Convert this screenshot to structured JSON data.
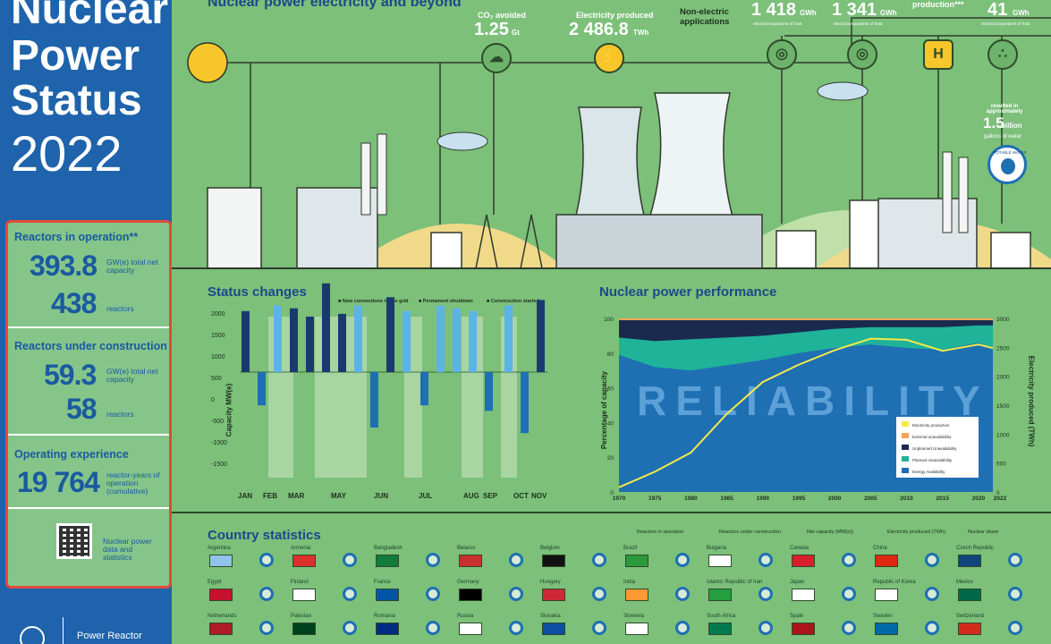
{
  "title": {
    "line1": "Nuclear",
    "line2": "Power",
    "line3": "Status",
    "year": "2022"
  },
  "stats": {
    "operation": {
      "heading": "Reactors in operation**",
      "capacity": "393.8",
      "capacity_unit": "GW(e) total net capacity",
      "reactors": "438",
      "reactors_unit": "reactors"
    },
    "construction": {
      "heading": "Reactors under construction",
      "capacity": "59.3",
      "capacity_unit": "GW(e) total net capacity",
      "reactors": "58",
      "reactors_unit": "reactors"
    },
    "experience": {
      "heading": "Operating experience",
      "value": "19 764",
      "unit": "reactor-years of operation (cumulative)"
    },
    "qr_label": "Nuclear power data and statistics"
  },
  "footer": {
    "org": "Power Reactor"
  },
  "hero": {
    "heading": "Nuclear power electricity and beyond",
    "co2_label": "CO₂ avoided",
    "co2_value": "1.25",
    "co2_unit": "Gt",
    "elec_label": "Electricity produced",
    "elec_value": "2 486.8",
    "elec_unit": "TWh",
    "nonelec": "Non-electric applications",
    "heat1_value": "1 418",
    "heat1_unit": "GWh",
    "heat1_note": "electrical equivalent of heat",
    "heat2_value": "1 341",
    "heat2_unit": "GWh",
    "heat2_note": "electrical equivalent of heat",
    "h2_label": "production***",
    "water_value": "41",
    "water_unit": "GWh",
    "water_note": "electrical equivalent of heat",
    "water_result": "resulted in approximately",
    "water_big": "1.5",
    "water_big_unit": "billion",
    "water_gal": "gallons of water",
    "potable": "POTABLE WATER"
  },
  "status": {
    "heading": "Status changes",
    "legend": [
      "New connections to the grid",
      "Permanent shutdown",
      "Construction started"
    ],
    "ylabel": "Capacity MW(e)",
    "yticks": [
      "2000",
      "1500",
      "1000",
      "500",
      "0",
      "-500",
      "-1000",
      "-1500"
    ],
    "months": [
      "JAN",
      "FEB",
      "MAR",
      "MAY",
      "JUN",
      "JUL",
      "AUG",
      "SEP",
      "OCT",
      "NOV"
    ]
  },
  "chart_data": {
    "type": "area",
    "title": "Nuclear power performance",
    "ylabel": "Percentage of capacity",
    "y2label": "Electricity produced (TWh)",
    "x": [
      1970,
      1975,
      1980,
      1985,
      1990,
      1995,
      2000,
      2005,
      2010,
      2015,
      2020,
      2022
    ],
    "xticks": [
      "1970",
      "1975",
      "1980",
      "1985",
      "1990",
      "1995",
      "2000",
      "2005",
      "2010",
      "2015",
      "2020",
      "2022"
    ],
    "yticks": [
      "100",
      "80",
      "60",
      "40",
      "20",
      "0"
    ],
    "y2ticks": [
      "3000",
      "2500",
      "2000",
      "1500",
      "1000",
      "500",
      "0"
    ],
    "ylim": [
      0,
      100
    ],
    "y2lim": [
      0,
      3000
    ],
    "watermark": "RELIABILITY",
    "series": [
      {
        "name": "Electricity production",
        "values": [
          80,
          350,
          680,
          1350,
          1900,
          2200,
          2450,
          2650,
          2630,
          2440,
          2550,
          2487
        ]
      },
      {
        "name": "External unavailability",
        "values": [
          1,
          1,
          1,
          1,
          1,
          1,
          1,
          1,
          1,
          1,
          1,
          1
        ]
      },
      {
        "name": "Unplanned Unavailability",
        "values": [
          10,
          12,
          11,
          10,
          9,
          7,
          5,
          4,
          4,
          4,
          3,
          3
        ]
      },
      {
        "name": "Planned Unavailability",
        "values": [
          10,
          15,
          18,
          16,
          14,
          12,
          11,
          10,
          12,
          13,
          10,
          13
        ]
      },
      {
        "name": "Energy Availability",
        "values": [
          79,
          72,
          70,
          73,
          76,
          80,
          83,
          85,
          83,
          82,
          86,
          83
        ]
      }
    ],
    "legend_position": "bottom-right"
  },
  "country": {
    "heading": "Country statistics",
    "legend": [
      "Reactors in operation",
      "Reactors under construction",
      "Net capacity (MW(e))",
      "Electricity produced (TWh)",
      "Nuclear share"
    ],
    "names": [
      "Argentina",
      "Armenia",
      "Bangladesh",
      "Belarus",
      "Belgium",
      "Brazil",
      "Bulgaria",
      "Canada",
      "China",
      "Czech Republic",
      "Egypt",
      "Finland",
      "France",
      "Germany",
      "Hungary",
      "India",
      "Islamic Republic of Iran",
      "Japan",
      "Republic of Korea",
      "Mexico",
      "Netherlands",
      "Pakistan",
      "Romania",
      "Russia",
      "Slovakia",
      "Slovenia",
      "South Africa",
      "Spain",
      "Sweden",
      "Switzerland"
    ]
  }
}
